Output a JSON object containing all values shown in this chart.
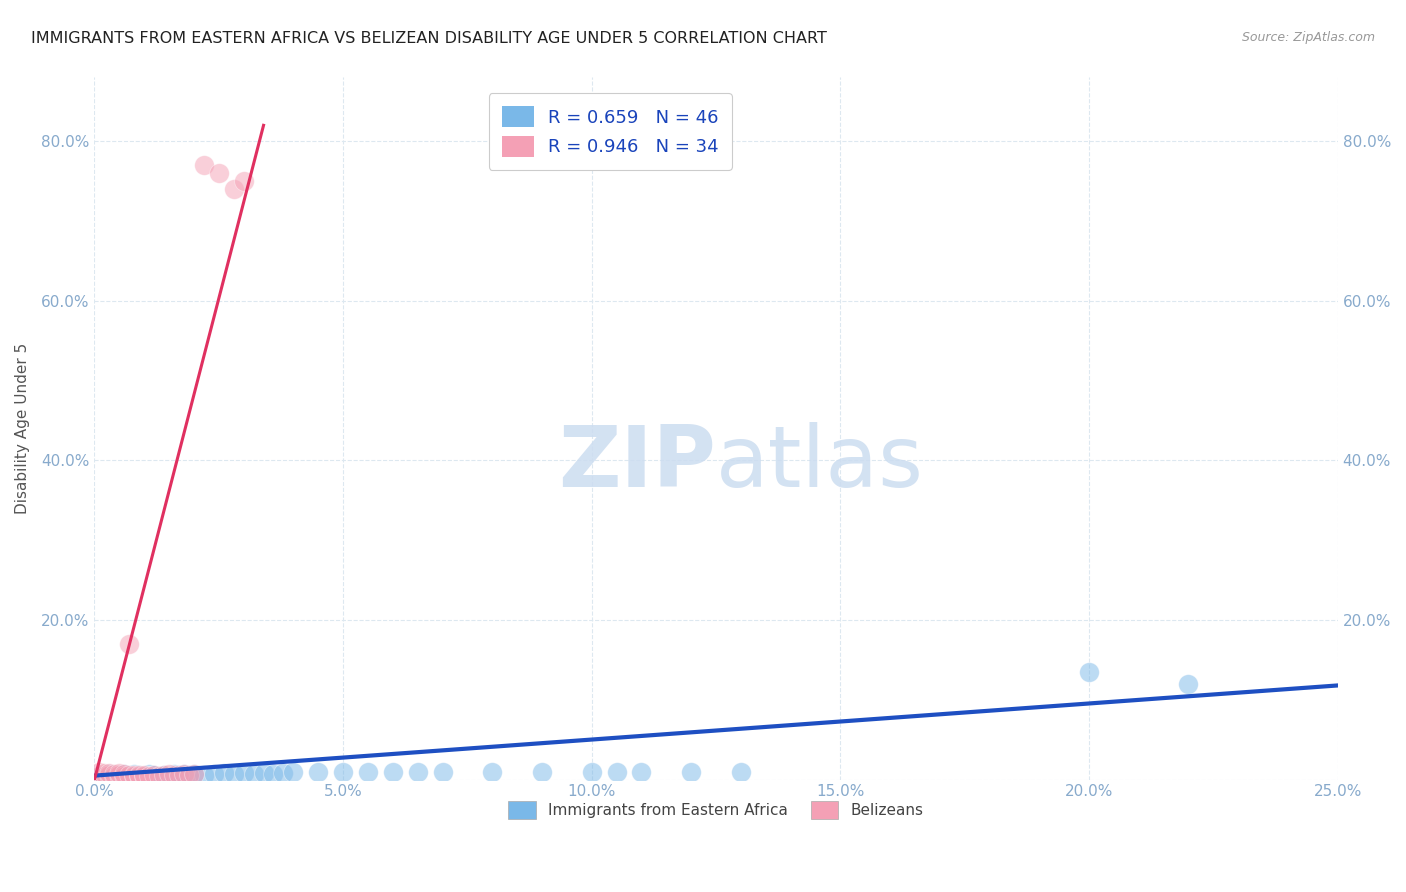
{
  "title": "IMMIGRANTS FROM EASTERN AFRICA VS BELIZEAN DISABILITY AGE UNDER 5 CORRELATION CHART",
  "source": "Source: ZipAtlas.com",
  "ylabel": "Disability Age Under 5",
  "xlim": [
    0.0,
    0.25
  ],
  "ylim": [
    0.0,
    0.88
  ],
  "xticks": [
    0.0,
    0.05,
    0.1,
    0.15,
    0.2,
    0.25
  ],
  "yticks": [
    0.0,
    0.2,
    0.4,
    0.6,
    0.8
  ],
  "xtick_labels": [
    "0.0%",
    "5.0%",
    "10.0%",
    "15.0%",
    "20.0%",
    "25.0%"
  ],
  "ytick_labels": [
    "",
    "20.0%",
    "40.0%",
    "60.0%",
    "80.0%"
  ],
  "legend1_label": "R = 0.659   N = 46",
  "legend2_label": "R = 0.946   N = 34",
  "legend_bottom_label1": "Immigrants from Eastern Africa",
  "legend_bottom_label2": "Belizeans",
  "blue_color": "#7ab8e8",
  "pink_color": "#f4a0b5",
  "blue_line_color": "#1e4fc2",
  "pink_line_color": "#e03060",
  "title_color": "#222222",
  "source_color": "#999999",
  "axis_color": "#88aacc",
  "grid_color": "#dde8f0",
  "watermark_color": "#ccddf0",
  "blue_scatter_x": [
    0.001,
    0.002,
    0.003,
    0.003,
    0.004,
    0.005,
    0.006,
    0.007,
    0.008,
    0.009,
    0.01,
    0.011,
    0.012,
    0.013,
    0.014,
    0.015,
    0.016,
    0.017,
    0.018,
    0.019,
    0.02,
    0.022,
    0.024,
    0.026,
    0.028,
    0.03,
    0.032,
    0.034,
    0.036,
    0.038,
    0.04,
    0.045,
    0.05,
    0.055,
    0.06,
    0.065,
    0.07,
    0.08,
    0.09,
    0.1,
    0.105,
    0.11,
    0.12,
    0.13,
    0.2,
    0.22
  ],
  "blue_scatter_y": [
    0.005,
    0.005,
    0.007,
    0.005,
    0.006,
    0.006,
    0.007,
    0.005,
    0.007,
    0.006,
    0.005,
    0.007,
    0.006,
    0.005,
    0.006,
    0.005,
    0.007,
    0.006,
    0.007,
    0.006,
    0.007,
    0.006,
    0.007,
    0.008,
    0.007,
    0.008,
    0.007,
    0.008,
    0.007,
    0.008,
    0.009,
    0.009,
    0.01,
    0.009,
    0.01,
    0.009,
    0.01,
    0.009,
    0.01,
    0.009,
    0.01,
    0.01,
    0.01,
    0.01,
    0.135,
    0.12
  ],
  "pink_scatter_x": [
    0.001,
    0.001,
    0.002,
    0.002,
    0.003,
    0.003,
    0.004,
    0.004,
    0.005,
    0.005,
    0.006,
    0.006,
    0.007,
    0.007,
    0.008,
    0.008,
    0.009,
    0.009,
    0.01,
    0.01,
    0.011,
    0.012,
    0.013,
    0.014,
    0.015,
    0.016,
    0.017,
    0.018,
    0.019,
    0.02,
    0.022,
    0.025,
    0.028,
    0.03
  ],
  "pink_scatter_y": [
    0.005,
    0.01,
    0.005,
    0.008,
    0.006,
    0.008,
    0.005,
    0.007,
    0.006,
    0.008,
    0.005,
    0.007,
    0.17,
    0.006,
    0.005,
    0.006,
    0.005,
    0.006,
    0.005,
    0.006,
    0.005,
    0.006,
    0.005,
    0.006,
    0.007,
    0.006,
    0.006,
    0.007,
    0.006,
    0.007,
    0.77,
    0.76,
    0.74,
    0.75
  ],
  "blue_trend_x": [
    0.0,
    0.25
  ],
  "blue_trend_y": [
    0.005,
    0.118
  ],
  "pink_trend_x": [
    0.0,
    0.034
  ],
  "pink_trend_y": [
    0.0,
    0.82
  ]
}
